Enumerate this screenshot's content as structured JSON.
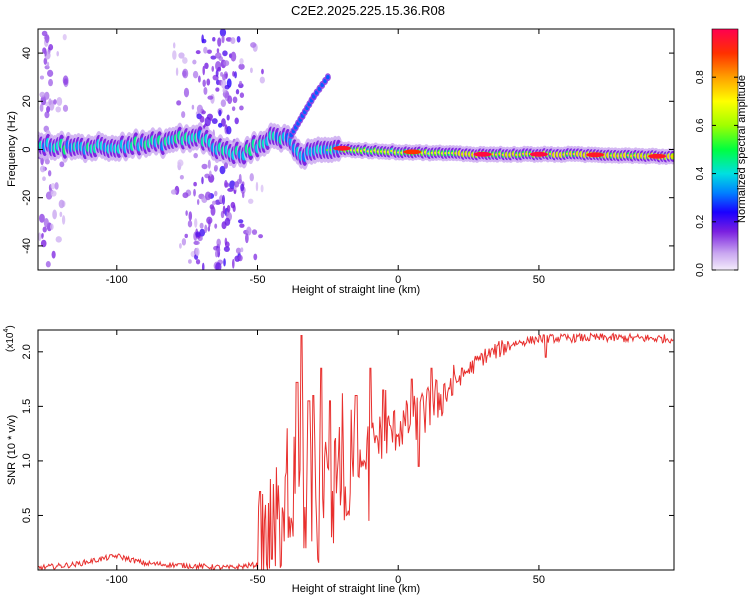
{
  "title": "C2E2.2025.225.15.36.R08",
  "chart_data": [
    {
      "type": "heatmap",
      "name": "spectrogram",
      "xlabel": "Height of straight line (km)",
      "ylabel": "Frequency (Hz)",
      "xlim": [
        -128,
        98
      ],
      "ylim": [
        -50,
        50
      ],
      "xticks": [
        -100,
        -50,
        0,
        50
      ],
      "yticks": [
        -40,
        -20,
        0,
        20,
        40
      ],
      "colorbar": {
        "label": "Normalized spectral amplitude",
        "range": [
          0.0,
          1.0
        ],
        "ticks": [
          "0.0",
          "0.2",
          "0.4",
          "0.6",
          "0.8"
        ],
        "tick_values": [
          0.0,
          0.2,
          0.4,
          0.6,
          0.8
        ]
      },
      "ridge_trace": [
        {
          "x": -128,
          "y": 1.5
        },
        {
          "x": -110,
          "y": 1.0
        },
        {
          "x": -95,
          "y": 2.0
        },
        {
          "x": -85,
          "y": 2.5
        },
        {
          "x": -78,
          "y": 4.5
        },
        {
          "x": -70,
          "y": 5.0
        },
        {
          "x": -62,
          "y": -1.0
        },
        {
          "x": -55,
          "y": -2.0
        },
        {
          "x": -48,
          "y": 3.5
        },
        {
          "x": -40,
          "y": 6.0
        },
        {
          "x": -35,
          "y": -2.5
        },
        {
          "x": -28,
          "y": 0.0
        },
        {
          "x": -20,
          "y": 0.0
        },
        {
          "x": 0,
          "y": -1.0
        },
        {
          "x": 30,
          "y": -2.0
        },
        {
          "x": 60,
          "y": -2.0
        },
        {
          "x": 85,
          "y": -2.5
        },
        {
          "x": 98,
          "y": -3.0
        }
      ],
      "branch_trace": [
        {
          "x": -38,
          "y": 6
        },
        {
          "x": -34,
          "y": 14
        },
        {
          "x": -30,
          "y": 22
        },
        {
          "x": -25,
          "y": 30
        }
      ],
      "peak_markers": [
        {
          "x": -20,
          "y": 0.5,
          "amp": 0.95
        },
        {
          "x": 5,
          "y": -1.0,
          "amp": 0.9
        },
        {
          "x": 30,
          "y": -2.0,
          "amp": 0.98
        },
        {
          "x": 50,
          "y": -2.0,
          "amp": 0.98
        },
        {
          "x": 70,
          "y": -2.2,
          "amp": 0.95
        },
        {
          "x": 92,
          "y": -2.8,
          "amp": 0.95
        }
      ]
    },
    {
      "type": "line",
      "name": "snr",
      "xlabel": "Height of straight line (km)",
      "ylabel": "SNR (10 * v/v)",
      "multiplier": "(x10",
      "multiplier_exp": "4",
      "multiplier_close": ")",
      "xlim": [
        -128,
        98
      ],
      "ylim": [
        0,
        2.2
      ],
      "xticks": [
        -100,
        -50,
        0,
        50
      ],
      "yticks": [
        0.5,
        1.0,
        1.5,
        2.0
      ],
      "ytick_labels": [
        "0.5",
        "1.0",
        "1.5",
        "2.0"
      ],
      "color": "#e8302e",
      "trend": [
        {
          "x": -128,
          "y": 0.02
        },
        {
          "x": -115,
          "y": 0.05
        },
        {
          "x": -100,
          "y": 0.13
        },
        {
          "x": -90,
          "y": 0.06
        },
        {
          "x": -60,
          "y": 0.02
        },
        {
          "x": -50,
          "y": 0.05
        },
        {
          "x": -45,
          "y": 0.35
        },
        {
          "x": -38,
          "y": 0.65
        },
        {
          "x": -33,
          "y": 0.85
        },
        {
          "x": -28,
          "y": 0.6
        },
        {
          "x": -22,
          "y": 0.8
        },
        {
          "x": -15,
          "y": 1.0
        },
        {
          "x": -8,
          "y": 1.2
        },
        {
          "x": 0,
          "y": 1.3
        },
        {
          "x": 10,
          "y": 1.45
        },
        {
          "x": 20,
          "y": 1.72
        },
        {
          "x": 30,
          "y": 1.95
        },
        {
          "x": 40,
          "y": 2.07
        },
        {
          "x": 50,
          "y": 2.12
        },
        {
          "x": 70,
          "y": 2.13
        },
        {
          "x": 98,
          "y": 2.12
        }
      ],
      "spikes": [
        {
          "x": -49,
          "y": 0.72
        },
        {
          "x": -44,
          "y": 1.05
        },
        {
          "x": -40,
          "y": 1.3
        },
        {
          "x": -36,
          "y": 1.72
        },
        {
          "x": -34,
          "y": 2.15
        },
        {
          "x": -32,
          "y": 1.55
        },
        {
          "x": -30,
          "y": 1.6
        },
        {
          "x": -27,
          "y": 1.85
        },
        {
          "x": -24,
          "y": 1.55
        },
        {
          "x": -20,
          "y": 1.62
        },
        {
          "x": -15,
          "y": 1.6
        },
        {
          "x": -10,
          "y": 1.85
        },
        {
          "x": -5,
          "y": 1.65
        },
        {
          "x": 5,
          "y": 1.75
        },
        {
          "x": 12,
          "y": 1.85
        }
      ],
      "dips": [
        {
          "x": -45,
          "y": 0.1
        },
        {
          "x": -39,
          "y": 0.15
        },
        {
          "x": -33,
          "y": 0.2
        },
        {
          "x": -29,
          "y": 0.1
        },
        {
          "x": -24,
          "y": 0.3
        },
        {
          "x": -18,
          "y": 0.5
        },
        {
          "x": -10,
          "y": 0.45
        },
        {
          "x": 7,
          "y": 0.95
        },
        {
          "x": 52,
          "y": 1.95
        }
      ]
    }
  ]
}
